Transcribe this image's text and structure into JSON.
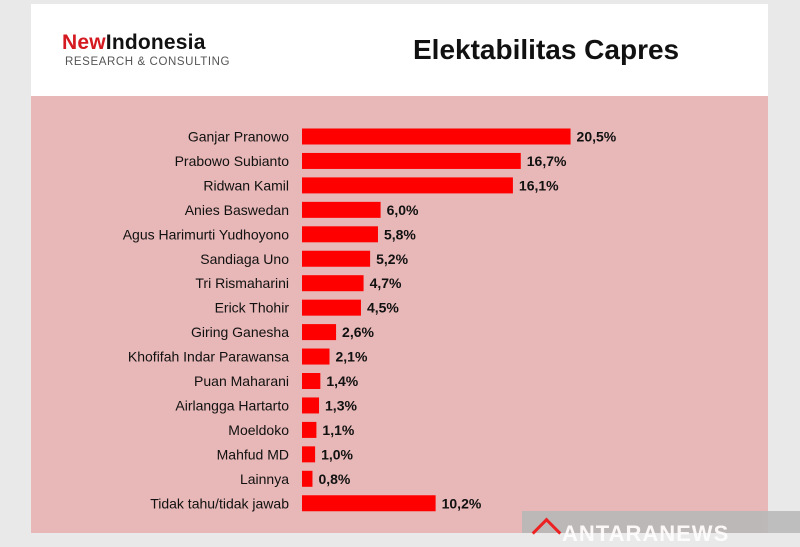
{
  "header": {
    "logo_new": "New",
    "logo_indonesia": "Indonesia",
    "logo_sub": "RESEARCH & CONSULTING",
    "title": "Elektabilitas Capres"
  },
  "watermark": {
    "text": "ANTARANEWS"
  },
  "colors": {
    "bar": "#ff0000",
    "plot_bg": "#e8b7b7",
    "logo_red": "#d51920"
  },
  "chart_data": {
    "type": "bar",
    "orientation": "horizontal",
    "categories": [
      "Ganjar Pranowo",
      "Prabowo Subianto",
      "Ridwan Kamil",
      "Anies Baswedan",
      "Agus Harimurti Yudhoyono",
      "Sandiaga Uno",
      "Tri Rismaharini",
      "Erick Thohir",
      "Giring Ganesha",
      "Khofifah Indar Parawansa",
      "Puan Maharani",
      "Airlangga Hartarto",
      "Moeldoko",
      "Mahfud MD",
      "Lainnya",
      "Tidak tahu/tidak jawab"
    ],
    "values": [
      20.5,
      16.7,
      16.1,
      6.0,
      5.8,
      5.2,
      4.7,
      4.5,
      2.6,
      2.1,
      1.4,
      1.3,
      1.1,
      1.0,
      0.8,
      10.2
    ],
    "value_labels": [
      "20,5%",
      "16,7%",
      "16,1%",
      "6,0%",
      "5,8%",
      "5,2%",
      "4,7%",
      "4,5%",
      "2,6%",
      "2,1%",
      "1,4%",
      "1,3%",
      "1,1%",
      "1,0%",
      "0,8%",
      "10,2%"
    ],
    "title": "Elektabilitas Capres",
    "xlabel": "",
    "ylabel": "",
    "grid": false
  }
}
